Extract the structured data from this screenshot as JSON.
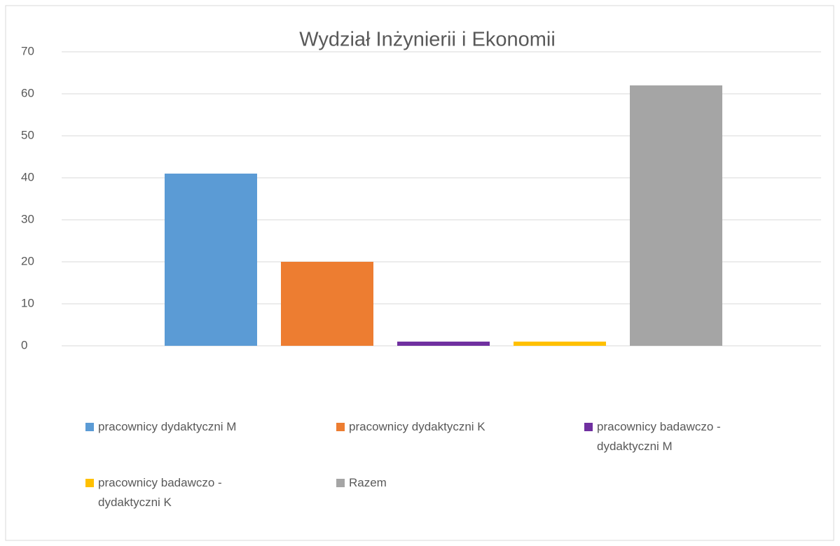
{
  "chart_data": {
    "type": "bar",
    "title": "Wydział Inżynierii i Ekonomii",
    "categories": [
      null
    ],
    "series": [
      {
        "name": "pracownicy dydaktyczni M",
        "color": "#5b9bd5",
        "values": [
          41
        ]
      },
      {
        "name": "pracownicy dydaktyczni K",
        "color": "#ed7d31",
        "values": [
          20
        ]
      },
      {
        "name": "pracownicy badawczo - dydaktyczni M",
        "color": "#7030a0",
        "values": [
          1
        ]
      },
      {
        "name": "pracownicy badawczo - dydaktyczni K",
        "color": "#ffc000",
        "values": [
          1
        ]
      },
      {
        "name": "Razem",
        "color": "#a5a5a5",
        "values": [
          62
        ]
      }
    ],
    "ylim": [
      0,
      70
    ],
    "yticks": [
      0,
      10,
      20,
      30,
      40,
      50,
      60,
      70
    ],
    "grid": true,
    "legend": "bottom"
  }
}
